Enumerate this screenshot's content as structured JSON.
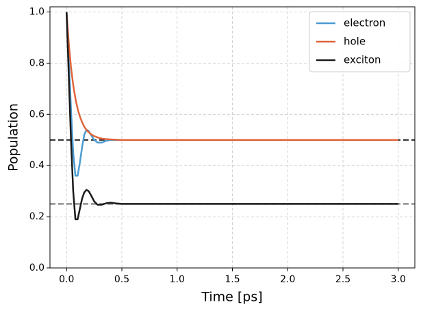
{
  "chart_data": {
    "type": "line",
    "xlabel": "Time [ps]",
    "ylabel": "Population",
    "x": [
      0,
      0.02,
      0.04,
      0.06,
      0.08,
      0.1,
      0.12,
      0.14,
      0.16,
      0.18,
      0.2,
      0.22,
      0.25,
      0.28,
      0.32,
      0.36,
      0.4,
      0.45,
      0.5,
      0.6,
      0.8,
      1.0,
      1.5,
      2.0,
      2.5,
      3.0
    ],
    "series": [
      {
        "name": "electron",
        "color": "#4a9ad0",
        "values": [
          1.0,
          0.82,
          0.62,
          0.45,
          0.36,
          0.36,
          0.41,
          0.47,
          0.52,
          0.54,
          0.535,
          0.52,
          0.5,
          0.49,
          0.49,
          0.497,
          0.5,
          0.5,
          0.5,
          0.5,
          0.5,
          0.5,
          0.5,
          0.5,
          0.5,
          0.5
        ]
      },
      {
        "name": "hole",
        "color": "#e0643a",
        "values": [
          1.0,
          0.877,
          0.785,
          0.715,
          0.662,
          0.622,
          0.592,
          0.57,
          0.552,
          0.539,
          0.53,
          0.523,
          0.515,
          0.51,
          0.505,
          0.503,
          0.502,
          0.501,
          0.5,
          0.5,
          0.5,
          0.5,
          0.5,
          0.5,
          0.5,
          0.5
        ]
      },
      {
        "name": "exciton",
        "color": "#1a1a1a",
        "values": [
          1.0,
          0.75,
          0.5,
          0.3,
          0.19,
          0.19,
          0.23,
          0.27,
          0.295,
          0.305,
          0.3,
          0.285,
          0.26,
          0.247,
          0.247,
          0.253,
          0.255,
          0.252,
          0.25,
          0.25,
          0.25,
          0.25,
          0.25,
          0.25,
          0.25,
          0.25
        ]
      }
    ],
    "hlines": [
      {
        "value": 0.5,
        "color": "#333333"
      },
      {
        "value": 0.25,
        "color": "#808080"
      }
    ],
    "xlim": [
      -0.15,
      3.15
    ],
    "ylim": [
      0,
      1.02
    ],
    "xticks": [
      {
        "value": 0,
        "label": "0.0"
      },
      0.5,
      {
        "value": 1,
        "label": "1.0"
      },
      1.5,
      {
        "value": 2,
        "label": "2.0"
      },
      2.5,
      {
        "value": 3,
        "label": "3.0"
      }
    ],
    "yticks": [
      {
        "value": 0,
        "label": "0.0"
      },
      0.2,
      0.4,
      0.6,
      0.8,
      {
        "value": 1,
        "label": "1.0"
      }
    ],
    "grid": true,
    "legend": "upper right"
  }
}
